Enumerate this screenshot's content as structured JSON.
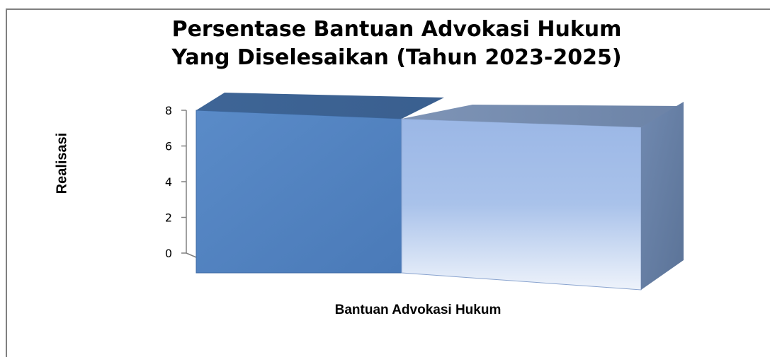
{
  "chart_data": {
    "type": "bar",
    "style": "3d-stacked-block",
    "title_lines": [
      "Persentase Bantuan Advokasi Hukum",
      "Yang Diselesaikan (Tahun 2023-2025)"
    ],
    "xlabel": "Bantuan Advokasi Hukum",
    "ylabel": "Realisasi",
    "ylim": [
      0,
      8
    ],
    "yticks": [
      "0",
      "2",
      "4",
      "6",
      "8"
    ],
    "categories": [
      ""
    ],
    "series": [
      {
        "values": [
          8
        ],
        "color": "#4f81bd"
      },
      {
        "values": [
          8
        ],
        "color": "#95b3e3"
      }
    ],
    "grid": false,
    "legend": "none"
  }
}
